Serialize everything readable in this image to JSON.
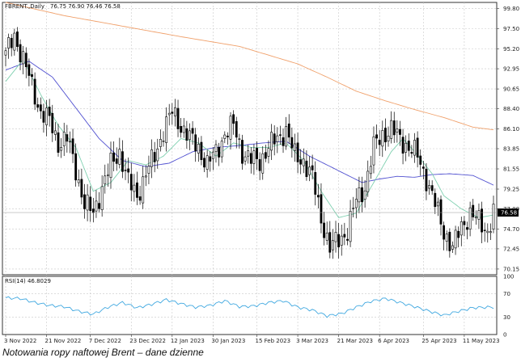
{
  "caption": "Notowania ropy naftowej Brent – dane dzienne",
  "chart_data": [
    {
      "type": "candlestick",
      "symbol_header": "FBRENT.,Daily",
      "ohlc_header": "76.75 76.90 76.46 76.58",
      "ylim": [
        69.5,
        100.5
      ],
      "y_ticks": [
        "99.80",
        "97.50",
        "95.20",
        "92.95",
        "90.65",
        "88.40",
        "86.10",
        "83.85",
        "81.55",
        "79.25",
        "77.00",
        "74.70",
        "72.45",
        "70.15"
      ],
      "last_price": "76.58",
      "x_ticks": [
        "3 Nov 2022",
        "21 Nov 2022",
        "7 Dec 2022",
        "23 Dec 2022",
        "12 Jan 2023",
        "30 Jan 2023",
        "15 Feb 2023",
        "3 Mar 2023",
        "21 Mar 2023",
        "6 Apr 2023",
        "25 Apr 2023",
        "11 May 2023"
      ],
      "key_closes": [
        [
          0,
          94.5
        ],
        [
          3,
          96.8
        ],
        [
          6,
          94.0
        ],
        [
          9,
          91.0
        ],
        [
          12,
          88.0
        ],
        [
          15,
          87.0
        ],
        [
          18,
          84.5
        ],
        [
          21,
          85.0
        ],
        [
          24,
          81.5
        ],
        [
          27,
          77.5
        ],
        [
          30,
          76.5
        ],
        [
          33,
          79.5
        ],
        [
          36,
          82.0
        ],
        [
          39,
          83.5
        ],
        [
          42,
          80.0
        ],
        [
          45,
          78.5
        ],
        [
          48,
          81.0
        ],
        [
          51,
          83.0
        ],
        [
          54,
          86.0
        ],
        [
          57,
          88.0
        ],
        [
          60,
          86.5
        ],
        [
          63,
          85.0
        ],
        [
          66,
          84.0
        ],
        [
          69,
          82.0
        ],
        [
          72,
          83.5
        ],
        [
          75,
          85.5
        ],
        [
          78,
          86.5
        ],
        [
          81,
          83.5
        ],
        [
          84,
          82.5
        ],
        [
          87,
          82.5
        ],
        [
          90,
          84.0
        ],
        [
          93,
          85.0
        ],
        [
          96,
          86.0
        ],
        [
          99,
          83.0
        ],
        [
          102,
          82.5
        ],
        [
          105,
          80.5
        ],
        [
          108,
          76.0
        ],
        [
          111,
          72.5
        ],
        [
          114,
          73.5
        ],
        [
          117,
          74.5
        ],
        [
          120,
          78.0
        ],
        [
          123,
          79.5
        ],
        [
          126,
          84.0
        ],
        [
          129,
          85.5
        ],
        [
          132,
          86.0
        ],
        [
          135,
          85.0
        ],
        [
          138,
          84.0
        ],
        [
          141,
          83.0
        ],
        [
          144,
          80.5
        ],
        [
          147,
          77.5
        ],
        [
          150,
          74.5
        ],
        [
          153,
          72.5
        ],
        [
          156,
          75.0
        ],
        [
          159,
          76.5
        ],
        [
          162,
          75.5
        ],
        [
          165,
          74.5
        ],
        [
          167,
          76.6
        ]
      ],
      "ma_slow": [
        [
          0,
          100.5
        ],
        [
          20,
          99.0
        ],
        [
          40,
          97.8
        ],
        [
          60,
          96.6
        ],
        [
          80,
          95.5
        ],
        [
          100,
          93.5
        ],
        [
          110,
          92.0
        ],
        [
          120,
          90.4
        ],
        [
          130,
          89.3
        ],
        [
          140,
          88.3
        ],
        [
          150,
          87.4
        ],
        [
          160,
          86.3
        ],
        [
          167,
          86.0
        ]
      ],
      "ma_mid": [
        [
          0,
          92.8
        ],
        [
          8,
          93.8
        ],
        [
          16,
          92.0
        ],
        [
          24,
          88.5
        ],
        [
          32,
          85.0
        ],
        [
          40,
          82.5
        ],
        [
          48,
          81.8
        ],
        [
          56,
          82.2
        ],
        [
          64,
          83.5
        ],
        [
          72,
          84.0
        ],
        [
          80,
          84.2
        ],
        [
          88,
          84.5
        ],
        [
          96,
          84.7
        ],
        [
          104,
          83.0
        ],
        [
          110,
          82.0
        ],
        [
          116,
          81.0
        ],
        [
          122,
          80.0
        ],
        [
          128,
          80.4
        ],
        [
          134,
          80.7
        ],
        [
          140,
          80.6
        ],
        [
          146,
          80.9
        ],
        [
          152,
          81.0
        ],
        [
          160,
          80.8
        ],
        [
          167,
          79.7
        ]
      ],
      "ma_fast": [
        [
          0,
          91.5
        ],
        [
          6,
          94.0
        ],
        [
          12,
          90.0
        ],
        [
          18,
          86.5
        ],
        [
          24,
          84.0
        ],
        [
          30,
          79.0
        ],
        [
          36,
          80.0
        ],
        [
          42,
          82.5
        ],
        [
          48,
          82.0
        ],
        [
          54,
          83.0
        ],
        [
          60,
          85.0
        ],
        [
          66,
          84.5
        ],
        [
          72,
          83.0
        ],
        [
          78,
          84.5
        ],
        [
          84,
          84.0
        ],
        [
          90,
          84.0
        ],
        [
          96,
          84.5
        ],
        [
          102,
          82.5
        ],
        [
          108,
          79.0
        ],
        [
          114,
          76.0
        ],
        [
          120,
          76.5
        ],
        [
          126,
          80.0
        ],
        [
          132,
          83.5
        ],
        [
          136,
          85.0
        ],
        [
          140,
          83.5
        ],
        [
          146,
          81.0
        ],
        [
          150,
          78.5
        ],
        [
          156,
          77.0
        ],
        [
          162,
          76.0
        ],
        [
          167,
          76.3
        ]
      ],
      "series_colors": {
        "up": "#ffffff",
        "down": "#000000",
        "ma_slow": "#f0a06a",
        "ma_mid": "#5050d0",
        "ma_fast": "#7fd0b0"
      }
    },
    {
      "type": "line",
      "indicator_header": "RSI(14) 46.8029",
      "ylim": [
        0,
        100
      ],
      "y_ticks": [
        "100",
        "70",
        "30",
        "0"
      ],
      "values": [
        [
          0,
          63
        ],
        [
          5,
          62
        ],
        [
          10,
          55
        ],
        [
          15,
          50
        ],
        [
          20,
          48
        ],
        [
          25,
          40
        ],
        [
          30,
          35
        ],
        [
          35,
          47
        ],
        [
          40,
          55
        ],
        [
          45,
          46
        ],
        [
          50,
          52
        ],
        [
          55,
          60
        ],
        [
          60,
          53
        ],
        [
          65,
          47
        ],
        [
          70,
          50
        ],
        [
          75,
          58
        ],
        [
          80,
          48
        ],
        [
          85,
          49
        ],
        [
          90,
          55
        ],
        [
          95,
          58
        ],
        [
          100,
          47
        ],
        [
          105,
          42
        ],
        [
          110,
          32
        ],
        [
          115,
          36
        ],
        [
          120,
          47
        ],
        [
          125,
          57
        ],
        [
          130,
          62
        ],
        [
          135,
          55
        ],
        [
          140,
          48
        ],
        [
          145,
          40
        ],
        [
          150,
          33
        ],
        [
          155,
          40
        ],
        [
          160,
          46
        ],
        [
          165,
          47
        ]
      ],
      "line_color": "#40a8e0"
    }
  ]
}
